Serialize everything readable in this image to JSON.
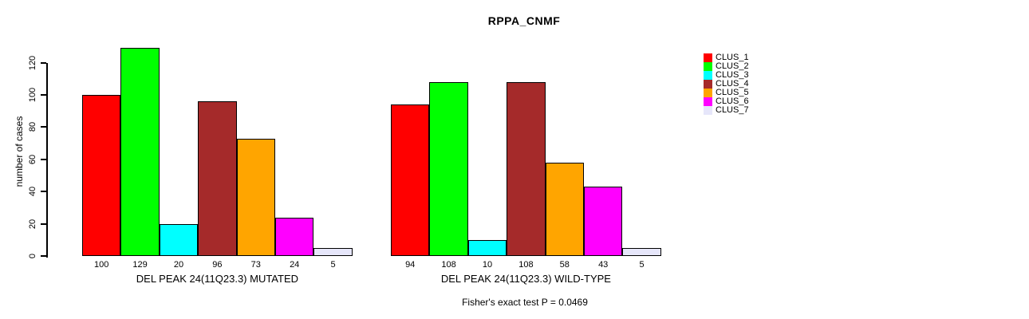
{
  "chart_data": {
    "type": "bar",
    "title": "RPPA_CNMF",
    "xlabel": "",
    "ylabel": "number of cases",
    "ylim": [
      0,
      130
    ],
    "yticks": [
      0,
      20,
      40,
      60,
      80,
      100,
      120
    ],
    "grid": false,
    "legend_position": "right",
    "bar_value_labels_shown": true,
    "categories": [
      "DEL PEAK 24(11Q23.3) MUTATED",
      "DEL PEAK 24(11Q23.3) WILD-TYPE"
    ],
    "series": [
      {
        "name": "CLUS_1",
        "color": "#FF0000",
        "values": [
          100,
          94
        ]
      },
      {
        "name": "CLUS_2",
        "color": "#00FF00",
        "values": [
          129,
          108
        ]
      },
      {
        "name": "CLUS_3",
        "color": "#00FFFF",
        "values": [
          20,
          10
        ]
      },
      {
        "name": "CLUS_4",
        "color": "#A52A2A",
        "values": [
          96,
          108
        ]
      },
      {
        "name": "CLUS_5",
        "color": "#FFA500",
        "values": [
          73,
          58
        ]
      },
      {
        "name": "CLUS_6",
        "color": "#FF00FF",
        "values": [
          24,
          43
        ]
      },
      {
        "name": "CLUS_7",
        "color": "#E6E6FA",
        "values": [
          5,
          5
        ]
      }
    ],
    "annotation": "Fisher's exact test P = 0.0469",
    "text_color": "#000000",
    "background_color": "#FFFFFF"
  }
}
